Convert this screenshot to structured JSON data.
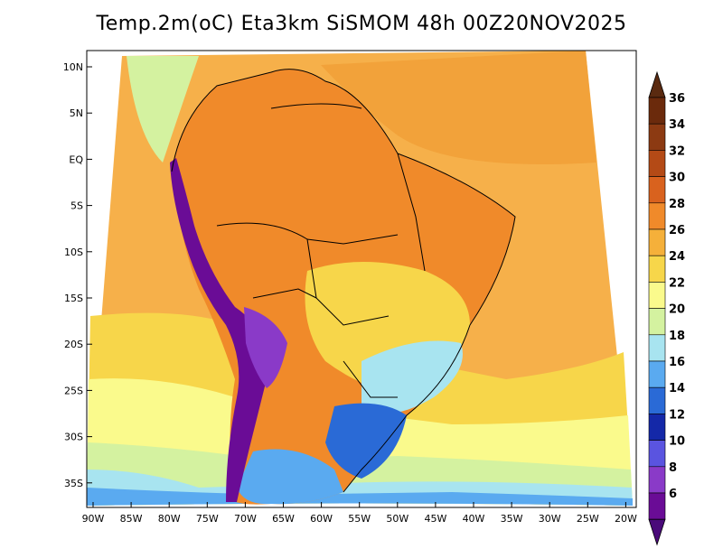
{
  "title": "Temp.2m(oC) Eta3km SiSMOM 48h 00Z20NOV2025",
  "map": {
    "lat_labels": [
      "10N",
      "5N",
      "EQ",
      "5S",
      "10S",
      "15S",
      "20S",
      "25S",
      "30S",
      "35S"
    ],
    "lon_labels": [
      "90W",
      "85W",
      "80W",
      "75W",
      "70W",
      "65W",
      "60W",
      "55W",
      "50W",
      "45W",
      "40W",
      "35W",
      "30W",
      "25W",
      "20W"
    ]
  },
  "colorbar": {
    "labels": [
      "36",
      "34",
      "32",
      "30",
      "28",
      "26",
      "24",
      "22",
      "20",
      "18",
      "16",
      "14",
      "12",
      "10",
      "8",
      "6"
    ],
    "colors": [
      "#6b2a0c",
      "#8c3a12",
      "#b44a16",
      "#d9621e",
      "#f08a2a",
      "#f5b03a",
      "#f7d64a",
      "#fafa8c",
      "#d4f2a0",
      "#a8e4f0",
      "#5aaaf0",
      "#2a6ad6",
      "#1428a8",
      "#5a54e0",
      "#8a3ac8",
      "#6a0c96"
    ],
    "top_color": "#5a2a10",
    "bottom_color": "#4a0a7a"
  }
}
